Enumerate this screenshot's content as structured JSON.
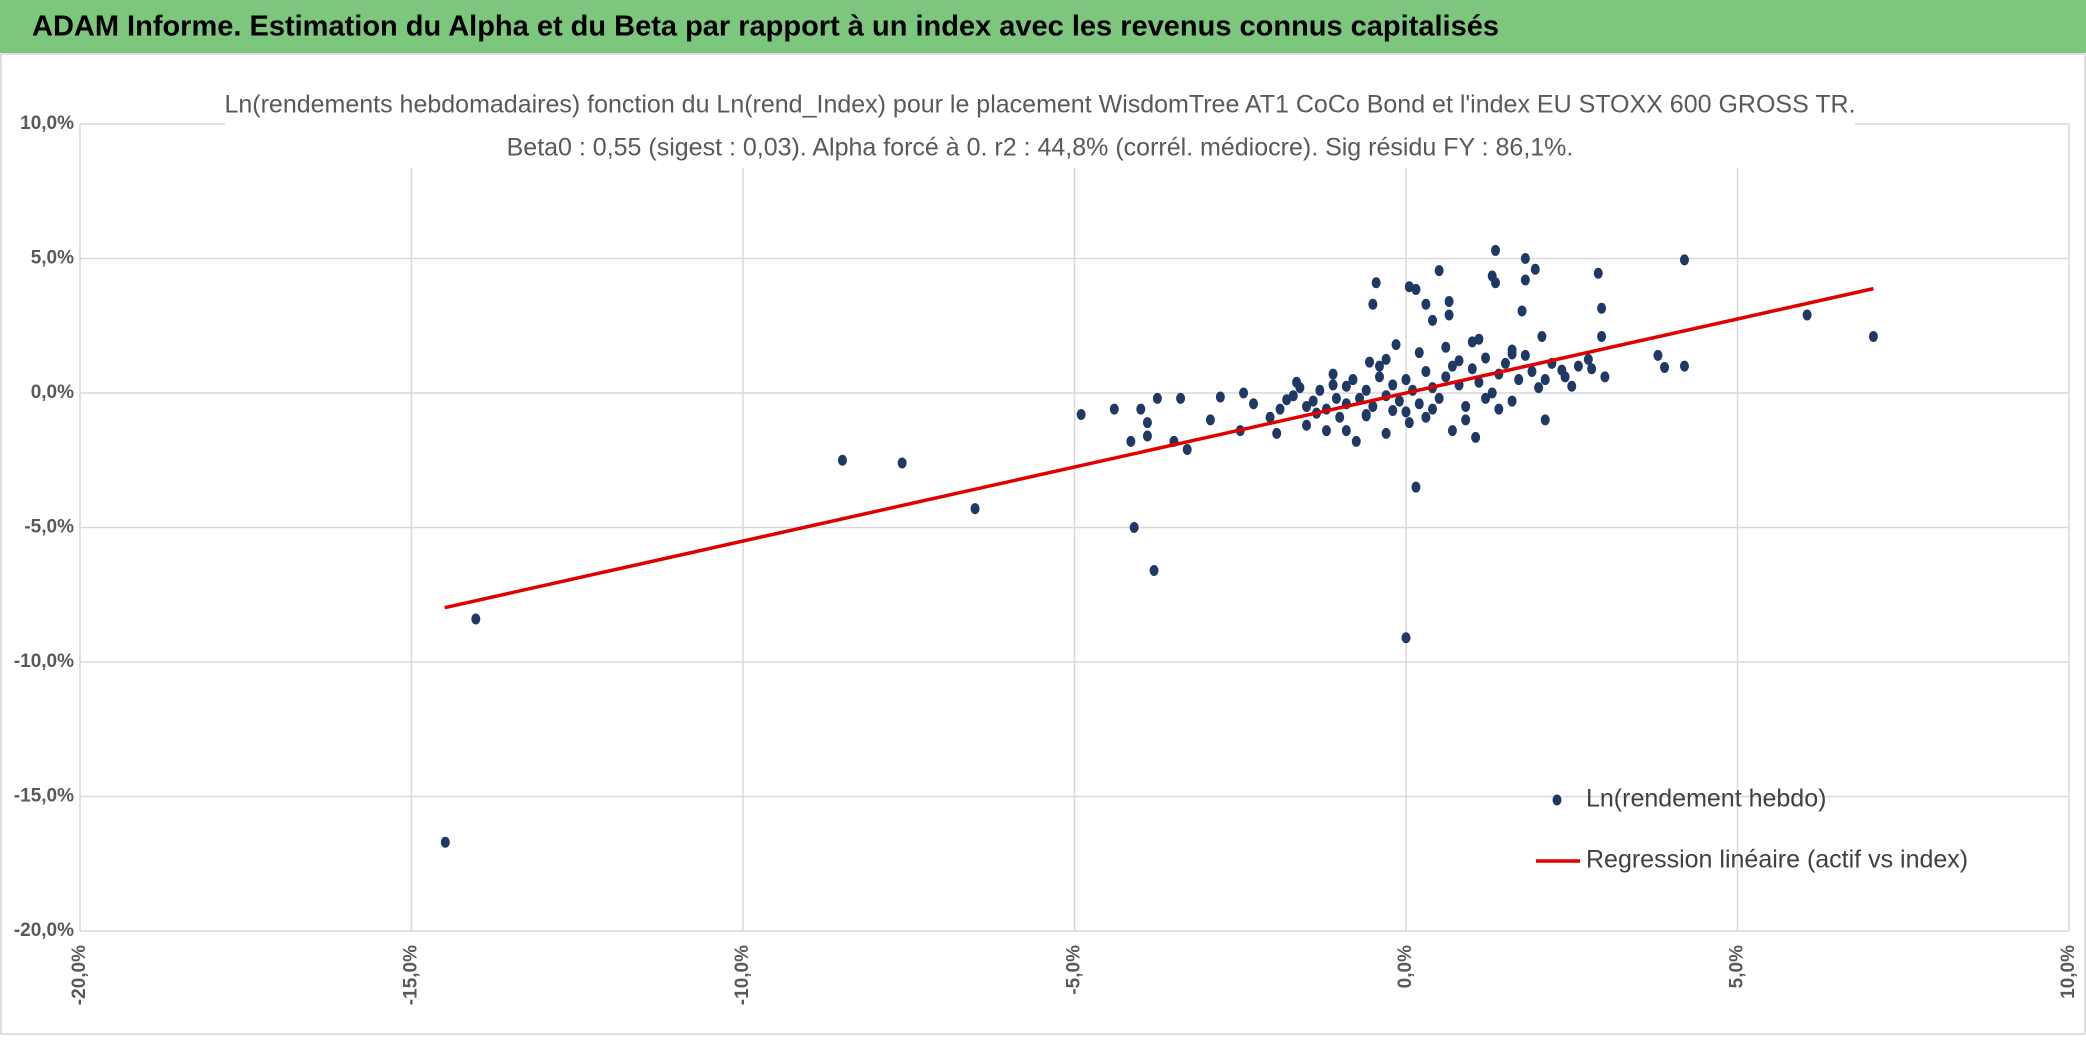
{
  "header": {
    "title": "ADAM Informe. Estimation du Alpha et du Beta par rapport à un index avec les revenus connus capitalisés"
  },
  "chart_data": {
    "type": "scatter",
    "title": "Ln(rendements hebdomadaires) fonction du Ln(rend_Index) pour le placement WisdomTree AT1 CoCo Bond  et l'index EU STOXX 600 GROSS TR.",
    "subtitle": "Beta0 : 0,55 (sigest : 0,03). Alpha forcé à 0. r2 : 44,8% (corrél. médiocre). Sig résidu FY : 86,1%.",
    "xlim": [
      -20,
      10
    ],
    "ylim": [
      -20,
      10
    ],
    "xticks": [
      {
        "value": -20,
        "label": "-20,0%"
      },
      {
        "value": -15,
        "label": "-15,0%"
      },
      {
        "value": -10,
        "label": "-10,0%"
      },
      {
        "value": -5,
        "label": "-5,0%"
      },
      {
        "value": 0,
        "label": "0,0%"
      },
      {
        "value": 5,
        "label": "5,0%"
      },
      {
        "value": 10,
        "label": "10,0%"
      }
    ],
    "yticks": [
      {
        "value": -20,
        "label": "-20,0%"
      },
      {
        "value": -15,
        "label": "-15,0%"
      },
      {
        "value": -10,
        "label": "-10,0%"
      },
      {
        "value": -5,
        "label": "-5,0%"
      },
      {
        "value": 0,
        "label": "0,0%"
      },
      {
        "value": 5,
        "label": "5,0%"
      },
      {
        "value": 10,
        "label": "10,0%"
      }
    ],
    "grid": true,
    "series": [
      {
        "name": "Ln(rendement hebdo)",
        "color": "#1f3864",
        "kind": "points",
        "x": [
          -14.03,
          -14.49,
          -8.5,
          -7.6,
          -6.5,
          -4.9,
          -4.4,
          -4.1,
          -3.8,
          -4.15,
          -3.9,
          -4.0,
          -3.9,
          -3.75,
          -3.5,
          -3.4,
          -3.3,
          -2.95,
          -2.8,
          -2.5,
          -2.45,
          -2.3,
          -2.05,
          -1.95,
          -1.8,
          -1.65,
          -1.5,
          -1.35,
          -1.2,
          -1.05,
          -0.9,
          -0.75,
          -0.6,
          -0.55,
          -0.5,
          -0.45,
          -0.3,
          -0.2,
          -0.15,
          0.0,
          0.05,
          0.15,
          0.05,
          0.15,
          0.3,
          0.5,
          0.4,
          0.65,
          0.65,
          0.7,
          1.05,
          1.1,
          1.3,
          1.35,
          1.35,
          1.6,
          1.75,
          1.8,
          1.8,
          1.95,
          2.05,
          2.1,
          2.35,
          2.5,
          2.75,
          2.9,
          2.95,
          2.95,
          3.0,
          3.8,
          3.9,
          4.2,
          4.2,
          6.05,
          7.05,
          -1.9,
          -1.7,
          -1.6,
          -1.4,
          -1.3,
          -1.2,
          -1.1,
          -1.0,
          -0.9,
          -0.8,
          -0.7,
          -0.6,
          -0.5,
          -0.4,
          -0.3,
          -0.2,
          -0.1,
          0.0,
          0.1,
          0.2,
          0.3,
          0.4,
          0.5,
          0.6,
          0.7,
          0.8,
          0.9,
          1.0,
          1.1,
          1.2,
          1.3,
          1.4,
          1.5,
          1.6,
          1.7,
          1.8,
          1.9,
          2.0,
          2.2,
          2.4,
          2.6,
          -1.5,
          -0.9,
          -0.3,
          0.3,
          0.9,
          1.4,
          0.2,
          0.6,
          1.0,
          -0.4,
          0.8,
          1.6,
          -1.1,
          0.4,
          2.1,
          2.8,
          -0.6,
          1.2,
          0.0
        ],
        "values": [
          -8.4,
          -16.7,
          -2.5,
          -2.6,
          -4.3,
          -0.8,
          -0.6,
          -5.0,
          -6.6,
          -1.8,
          -1.6,
          -0.6,
          -1.1,
          -0.2,
          -1.8,
          -0.2,
          -2.1,
          -1.0,
          -0.15,
          -1.4,
          0.0,
          -0.4,
          -0.9,
          -1.5,
          -0.25,
          0.4,
          -0.5,
          -0.75,
          -1.4,
          -0.2,
          0.25,
          -1.8,
          -0.85,
          1.15,
          3.3,
          4.1,
          1.25,
          -0.65,
          1.8,
          -9.1,
          -1.1,
          -3.5,
          3.95,
          3.85,
          3.3,
          4.55,
          2.7,
          3.4,
          2.9,
          -1.4,
          -1.65,
          2.0,
          4.35,
          4.1,
          5.3,
          1.45,
          3.05,
          5.0,
          4.2,
          4.6,
          2.1,
          -1.0,
          0.85,
          0.25,
          1.25,
          4.45,
          3.15,
          2.1,
          0.6,
          1.4,
          0.95,
          1.0,
          4.95,
          2.9,
          2.1,
          -0.6,
          -0.1,
          0.2,
          -0.3,
          0.1,
          -0.6,
          0.3,
          -0.9,
          -0.4,
          0.5,
          -0.2,
          0.1,
          -0.5,
          0.6,
          -0.1,
          0.3,
          -0.3,
          0.5,
          0.1,
          -0.4,
          0.8,
          0.2,
          -0.2,
          0.6,
          1.0,
          0.3,
          -0.5,
          0.9,
          0.4,
          1.3,
          0.0,
          0.7,
          1.1,
          -0.3,
          0.5,
          1.4,
          0.8,
          0.2,
          1.1,
          0.6,
          1.0,
          -1.2,
          -1.4,
          -1.5,
          -0.9,
          -1.0,
          -0.6,
          1.5,
          1.7,
          1.9,
          1.0,
          1.2,
          1.6,
          0.7,
          -0.6,
          0.5,
          0.9,
          -0.8,
          -0.2,
          -0.7
        ]
      },
      {
        "name": "Regression linéaire (actif vs index)",
        "color": "#e00000",
        "kind": "line",
        "x": [
          -14.5,
          7.05
        ],
        "values": [
          -7.98,
          3.88
        ]
      }
    ]
  }
}
